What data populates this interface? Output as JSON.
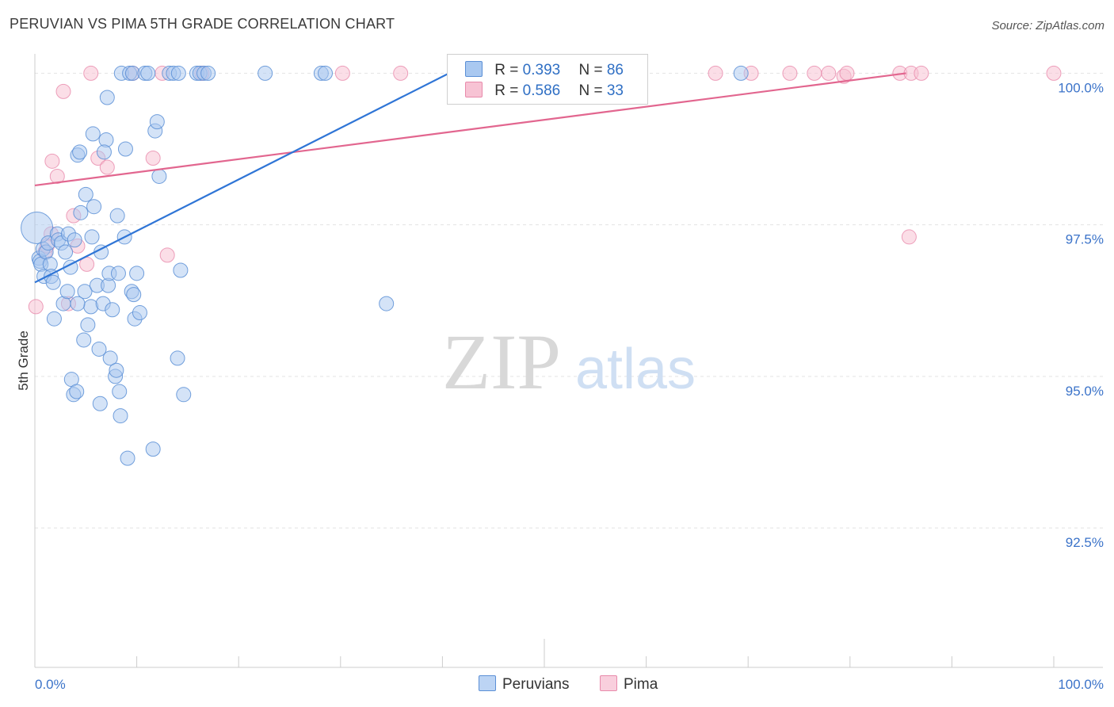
{
  "title": "PERUVIAN VS PIMA 5TH GRADE CORRELATION CHART",
  "source": "Source: ZipAtlas.com",
  "watermark": {
    "zip": "ZIP",
    "atlas": "atlas"
  },
  "legend": {
    "rows": [
      {
        "r_label": "R = ",
        "r_value": "0.393",
        "n_label": "N = ",
        "n_value": "86"
      },
      {
        "r_label": "R = ",
        "r_value": "0.586",
        "n_label": "N = ",
        "n_value": "33"
      }
    ]
  },
  "bottom_legend": [
    "Peruvians",
    "Pima"
  ],
  "colors": {
    "peruvian_fill": "#a9c8f0",
    "peruvian_stroke": "#5b8fd6",
    "peruvian_line": "#2f75d6",
    "pima_fill": "#f7c3d4",
    "pima_stroke": "#e88aab",
    "pima_line": "#e2668f",
    "axis_text": "#3b73c9",
    "grid": "#e3e3e3"
  },
  "chart_data": {
    "type": "scatter",
    "title": "PERUVIAN VS PIMA 5TH GRADE CORRELATION CHART",
    "xlabel": "",
    "ylabel": "5th Grade",
    "xlim": [
      0,
      100
    ],
    "ylim": [
      90.2,
      100.45
    ],
    "x_ticks": [
      "0.0%",
      "100.0%"
    ],
    "y_ticks": [
      {
        "value": 100.0,
        "label": "100.0%"
      },
      {
        "value": 97.5,
        "label": "97.5%"
      },
      {
        "value": 95.0,
        "label": "95.0%"
      },
      {
        "value": 92.5,
        "label": "92.5%"
      }
    ],
    "series": [
      {
        "name": "Peruvians",
        "R": 0.393,
        "N": 86,
        "trend": {
          "x": [
            0.0,
            43.0
          ],
          "y": [
            96.55,
            100.2
          ]
        },
        "points": [
          [
            0.2,
            97.45
          ],
          [
            0.4,
            96.95
          ],
          [
            0.5,
            96.9
          ],
          [
            0.6,
            96.85
          ],
          [
            0.8,
            97.1
          ],
          [
            0.9,
            96.65
          ],
          [
            1.1,
            97.05
          ],
          [
            1.3,
            97.2
          ],
          [
            1.5,
            96.85
          ],
          [
            1.6,
            96.65
          ],
          [
            1.8,
            96.55
          ],
          [
            1.9,
            95.95
          ],
          [
            2.2,
            97.35
          ],
          [
            2.3,
            97.25
          ],
          [
            2.6,
            97.2
          ],
          [
            2.8,
            96.2
          ],
          [
            3.0,
            97.05
          ],
          [
            3.2,
            96.4
          ],
          [
            3.3,
            97.35
          ],
          [
            3.5,
            96.8
          ],
          [
            3.6,
            94.95
          ],
          [
            3.8,
            94.7
          ],
          [
            3.9,
            97.25
          ],
          [
            4.1,
            94.75
          ],
          [
            4.2,
            98.65
          ],
          [
            4.4,
            98.7
          ],
          [
            4.5,
            97.7
          ],
          [
            4.8,
            95.6
          ],
          [
            4.9,
            96.4
          ],
          [
            5.0,
            98.0
          ],
          [
            5.2,
            95.85
          ],
          [
            5.5,
            96.15
          ],
          [
            5.6,
            97.3
          ],
          [
            5.7,
            99.0
          ],
          [
            5.8,
            97.8
          ],
          [
            6.1,
            96.5
          ],
          [
            6.3,
            95.45
          ],
          [
            6.4,
            94.55
          ],
          [
            6.5,
            97.05
          ],
          [
            6.7,
            96.2
          ],
          [
            7.0,
            98.9
          ],
          [
            7.2,
            96.5
          ],
          [
            7.3,
            96.7
          ],
          [
            7.4,
            95.3
          ],
          [
            7.6,
            96.1
          ],
          [
            7.9,
            95.0
          ],
          [
            8.0,
            95.1
          ],
          [
            8.1,
            97.65
          ],
          [
            8.2,
            96.7
          ],
          [
            8.3,
            94.75
          ],
          [
            8.4,
            94.35
          ],
          [
            8.5,
            100.0
          ],
          [
            8.8,
            97.3
          ],
          [
            9.1,
            93.65
          ],
          [
            9.3,
            100.0
          ],
          [
            9.5,
            96.4
          ],
          [
            9.6,
            100.0
          ],
          [
            9.7,
            96.35
          ],
          [
            9.8,
            95.95
          ],
          [
            10.0,
            96.7
          ],
          [
            10.3,
            96.05
          ],
          [
            10.8,
            100.0
          ],
          [
            11.1,
            100.0
          ],
          [
            11.6,
            93.8
          ],
          [
            11.8,
            99.05
          ],
          [
            12.0,
            99.2
          ],
          [
            12.2,
            98.3
          ],
          [
            13.2,
            100.0
          ],
          [
            13.6,
            100.0
          ],
          [
            14.1,
            100.0
          ],
          [
            14.3,
            96.75
          ],
          [
            14.6,
            94.7
          ],
          [
            15.9,
            100.0
          ],
          [
            16.2,
            100.0
          ],
          [
            16.6,
            100.0
          ],
          [
            17.0,
            100.0
          ],
          [
            22.6,
            100.0
          ],
          [
            28.1,
            100.0
          ],
          [
            28.5,
            100.0
          ],
          [
            34.5,
            96.2
          ],
          [
            8.9,
            98.75
          ],
          [
            6.8,
            98.7
          ],
          [
            7.1,
            99.6
          ],
          [
            14.0,
            95.3
          ],
          [
            69.3,
            100.0
          ],
          [
            4.2,
            96.2
          ]
        ]
      },
      {
        "name": "Pima",
        "R": 0.586,
        "N": 33,
        "trend": {
          "x": [
            0.0,
            85.5
          ],
          "y": [
            98.15,
            100.0
          ]
        },
        "points": [
          [
            0.1,
            96.15
          ],
          [
            1.0,
            97.05
          ],
          [
            1.7,
            98.55
          ],
          [
            2.2,
            98.3
          ],
          [
            2.8,
            99.7
          ],
          [
            3.3,
            96.2
          ],
          [
            3.8,
            97.65
          ],
          [
            4.2,
            97.15
          ],
          [
            5.1,
            96.85
          ],
          [
            5.5,
            100.0
          ],
          [
            6.2,
            98.6
          ],
          [
            7.1,
            98.45
          ],
          [
            9.6,
            100.0
          ],
          [
            11.6,
            98.6
          ],
          [
            12.5,
            100.0
          ],
          [
            13.0,
            97.0
          ],
          [
            16.4,
            100.0
          ],
          [
            30.2,
            100.0
          ],
          [
            35.9,
            100.0
          ],
          [
            66.8,
            100.0
          ],
          [
            70.3,
            100.0
          ],
          [
            74.1,
            100.0
          ],
          [
            76.5,
            100.0
          ],
          [
            77.9,
            100.0
          ],
          [
            79.4,
            99.95
          ],
          [
            79.7,
            100.0
          ],
          [
            84.9,
            100.0
          ],
          [
            85.8,
            97.3
          ],
          [
            86.0,
            100.0
          ],
          [
            87.0,
            100.0
          ],
          [
            100.0,
            100.0
          ],
          [
            1.6,
            97.35
          ],
          [
            1.2,
            97.15
          ]
        ]
      }
    ]
  }
}
